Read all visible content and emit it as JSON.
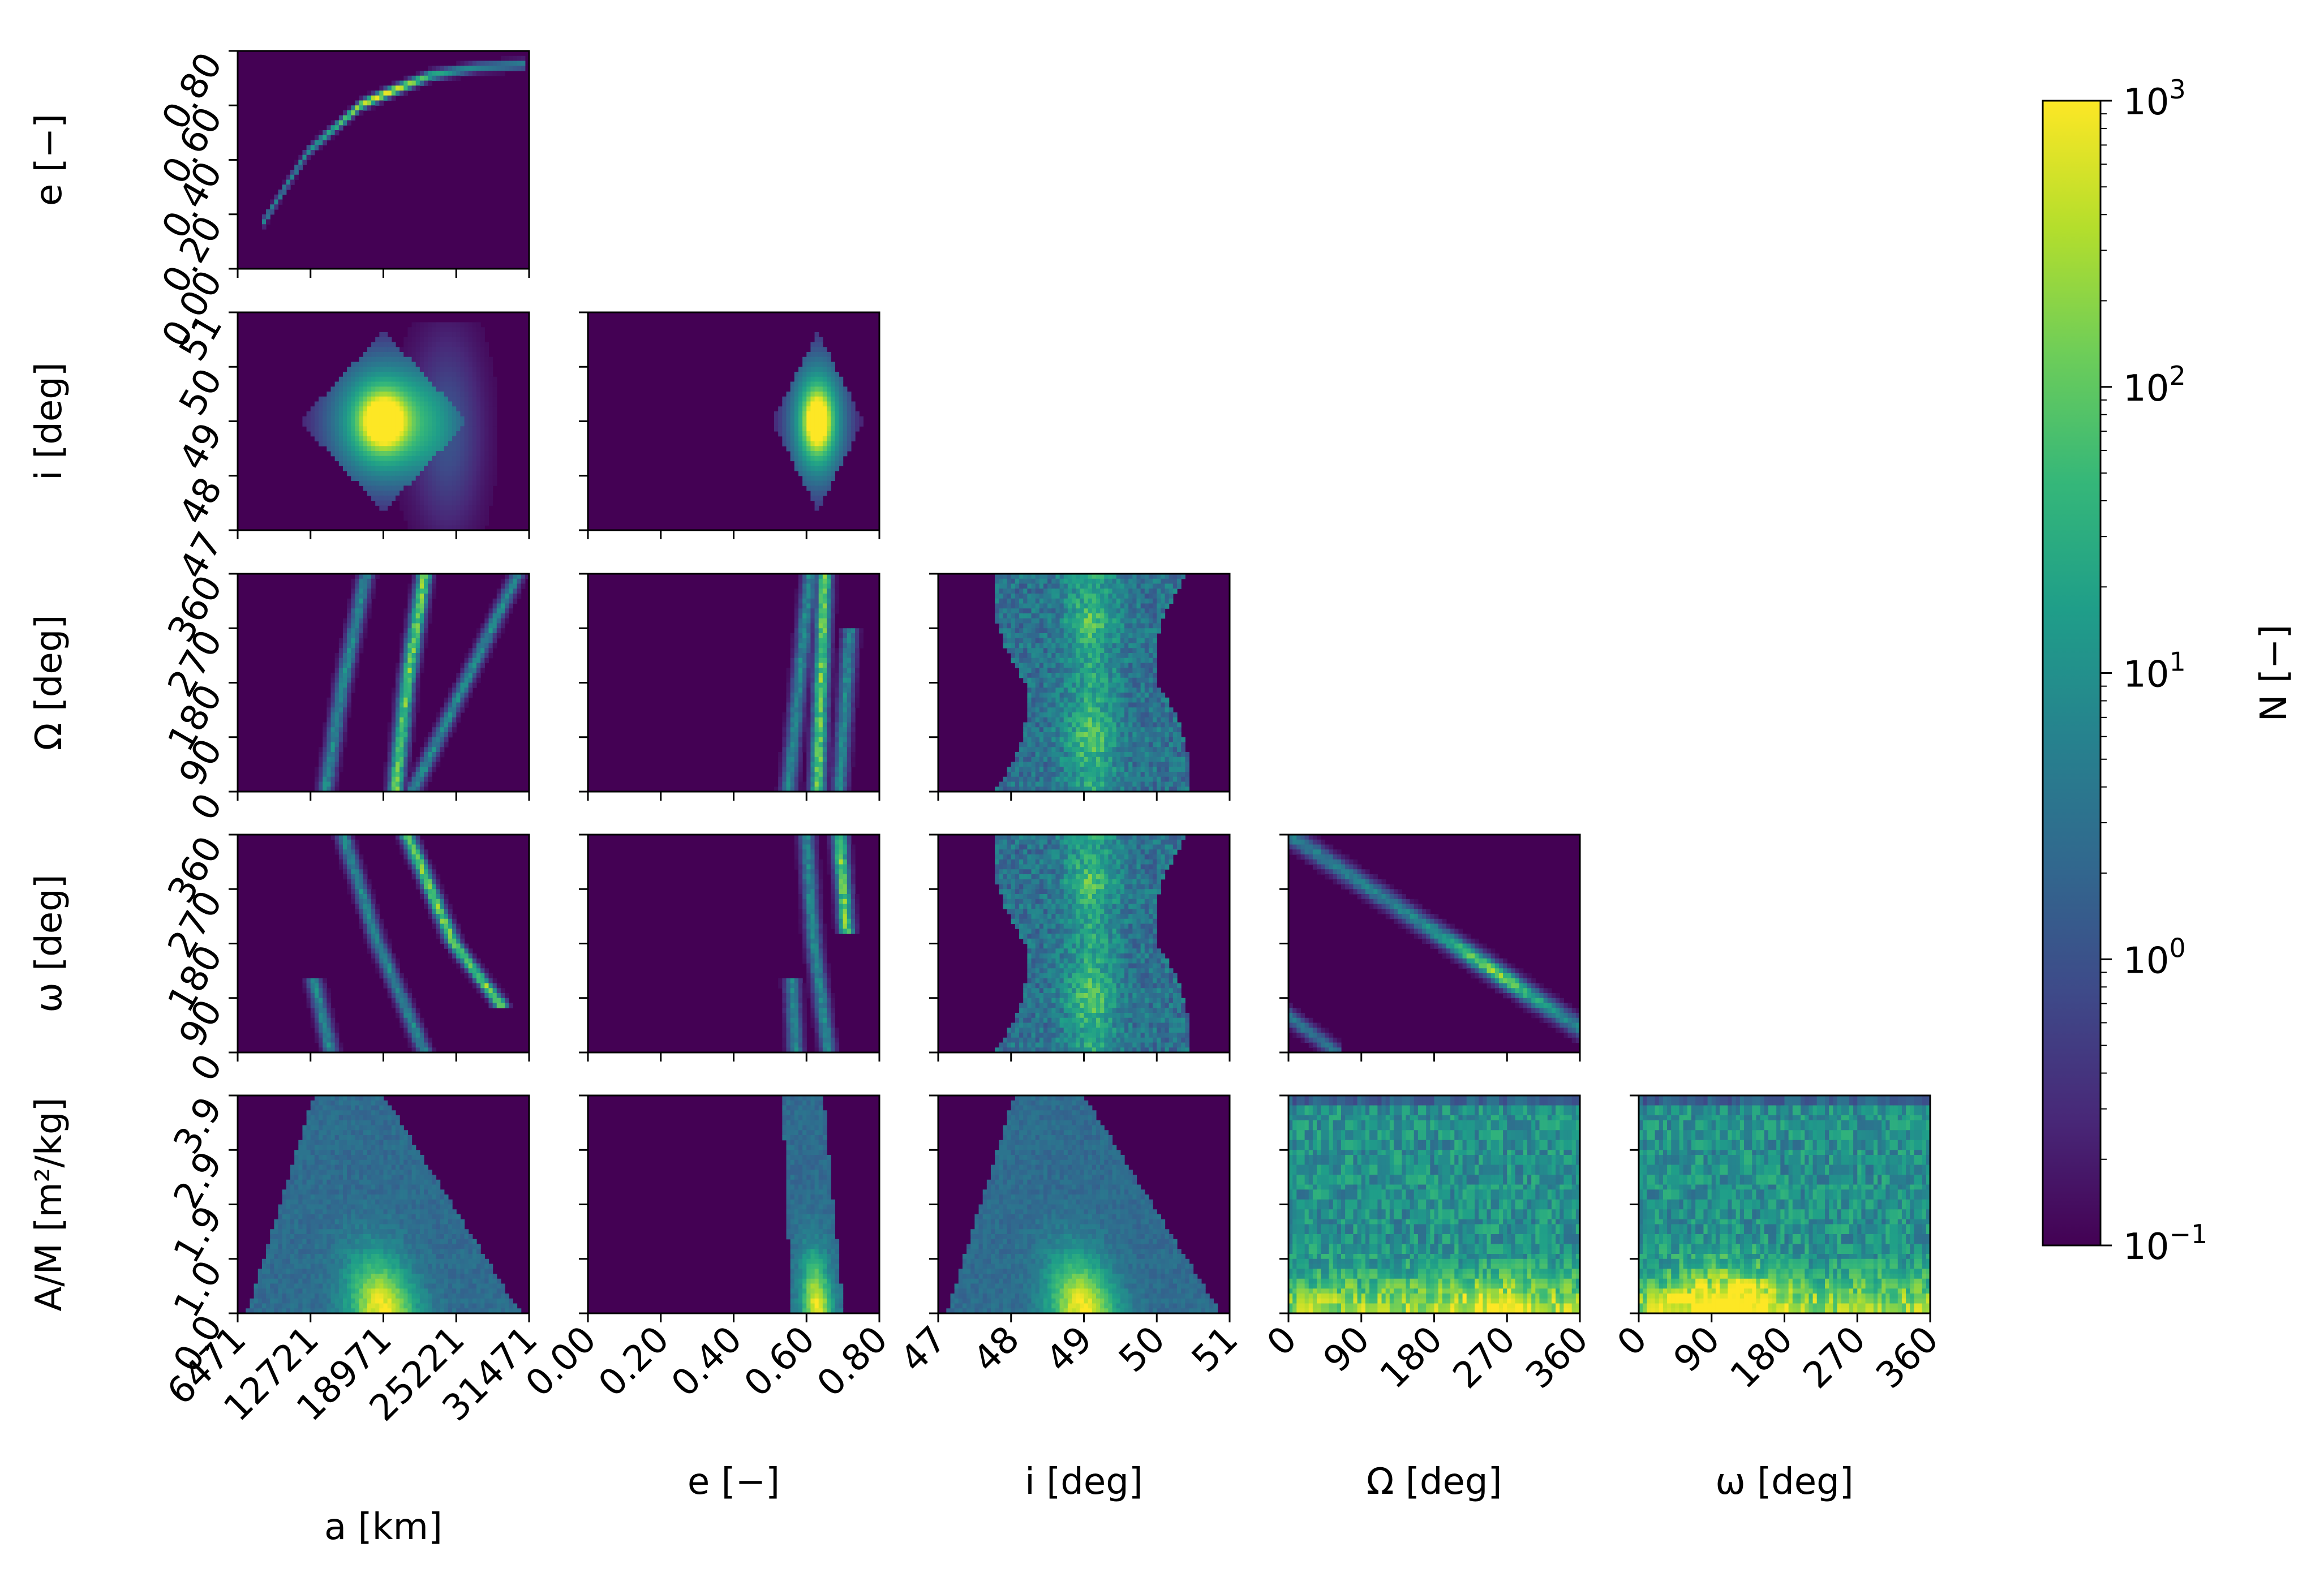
{
  "chart_data": {
    "type": "heatmap",
    "layout": "corner-plot",
    "variables": [
      {
        "key": "a",
        "label": "a [km]",
        "range": [
          6471,
          31471
        ],
        "ticks": [
          "6471",
          "12721",
          "18971",
          "25221",
          "31471"
        ]
      },
      {
        "key": "e",
        "label": "e [−]",
        "range": [
          0.0,
          0.8
        ],
        "ticks": [
          "0.00",
          "0.20",
          "0.40",
          "0.60",
          "0.80"
        ]
      },
      {
        "key": "i",
        "label": "i [deg]",
        "range": [
          47,
          51
        ],
        "ticks": [
          "47",
          "48",
          "49",
          "50",
          "51"
        ]
      },
      {
        "key": "Omega",
        "label": "Ω [deg]",
        "range": [
          0,
          360
        ],
        "ticks": [
          "0",
          "90",
          "180",
          "270",
          "360"
        ]
      },
      {
        "key": "omega",
        "label": "ω [deg]",
        "range": [
          0,
          360
        ],
        "ticks": [
          "0",
          "90",
          "180",
          "270",
          "360"
        ]
      },
      {
        "key": "AM",
        "label": "A/M [m²/kg]",
        "range": [
          0.0,
          3.9
        ],
        "ticks": [
          "0.0",
          "1.0",
          "1.9",
          "2.9",
          "3.9"
        ]
      }
    ],
    "panels": [
      {
        "row": "e",
        "col": "a",
        "pattern": "arc",
        "pts": [
          [
            8500,
            0.16
          ],
          [
            12500,
            0.43
          ],
          [
            17000,
            0.6
          ],
          [
            19000,
            0.64
          ],
          [
            23000,
            0.71
          ],
          [
            27000,
            0.74
          ],
          [
            31000,
            0.75
          ]
        ],
        "peak": [
          19000,
          0.64
        ],
        "width": 0.012
      },
      {
        "row": "i",
        "col": "a",
        "pattern": "blob",
        "center": [
          19000,
          49.0
        ],
        "spread": [
          3500,
          0.9
        ],
        "extra": [
          24500,
          48.8
        ]
      },
      {
        "row": "i",
        "col": "e",
        "pattern": "blob",
        "center": [
          0.63,
          49.0
        ],
        "spread": [
          0.06,
          0.9
        ]
      },
      {
        "row": "Omega",
        "col": "a",
        "pattern": "curves",
        "curves": [
          [
            [
              14000,
              0
            ],
            [
              15500,
              180
            ],
            [
              17500,
              360
            ]
          ],
          [
            [
              20000,
              0
            ],
            [
              21000,
              180
            ],
            [
              22500,
              360
            ]
          ],
          [
            [
              21500,
              0
            ],
            [
              26000,
              180
            ],
            [
              30500,
              360
            ]
          ]
        ]
      },
      {
        "row": "Omega",
        "col": "e",
        "pattern": "curves",
        "curves": [
          [
            [
              0.55,
              0
            ],
            [
              0.58,
              180
            ],
            [
              0.61,
              360
            ]
          ],
          [
            [
              0.63,
              0
            ],
            [
              0.64,
              180
            ],
            [
              0.65,
              360
            ]
          ],
          [
            [
              0.69,
              0
            ],
            [
              0.71,
              180
            ],
            [
              0.72,
              270
            ]
          ]
        ]
      },
      {
        "row": "Omega",
        "col": "i",
        "pattern": "band",
        "center": 49.1,
        "halfwidth": 1.2
      },
      {
        "row": "omega",
        "col": "a",
        "pattern": "curves",
        "curves": [
          [
            [
              15500,
              360
            ],
            [
              18500,
              180
            ],
            [
              22500,
              0
            ]
          ],
          [
            [
              21000,
              360
            ],
            [
              25000,
              180
            ],
            [
              29000,
              80
            ]
          ],
          [
            [
              13000,
              120
            ],
            [
              14000,
              40
            ],
            [
              14500,
              0
            ]
          ]
        ]
      },
      {
        "row": "omega",
        "col": "e",
        "pattern": "curves",
        "curves": [
          [
            [
              0.6,
              360
            ],
            [
              0.62,
              180
            ],
            [
              0.66,
              0
            ]
          ],
          [
            [
              0.69,
              360
            ],
            [
              0.71,
              200
            ]
          ],
          [
            [
              0.56,
              120
            ],
            [
              0.57,
              0
            ]
          ]
        ]
      },
      {
        "row": "omega",
        "col": "i",
        "pattern": "band",
        "center": 49.1,
        "halfwidth": 1.2
      },
      {
        "row": "omega",
        "col": "Omega",
        "pattern": "diagonal",
        "pts": [
          [
            0,
            360
          ],
          [
            360,
            40
          ]
        ],
        "wrap": [
          [
            0,
            60
          ],
          [
            60,
            0
          ]
        ]
      },
      {
        "row": "AM",
        "col": "a",
        "pattern": "wedge",
        "center": 19000
      },
      {
        "row": "AM",
        "col": "e",
        "pattern": "wedge-narrow",
        "center": 0.63
      },
      {
        "row": "AM",
        "col": "i",
        "pattern": "wedge",
        "center": 49.0
      },
      {
        "row": "AM",
        "col": "Omega",
        "pattern": "uniform-columns"
      },
      {
        "row": "AM",
        "col": "omega",
        "pattern": "uniform-columns",
        "peak": 110
      }
    ],
    "colorbar": {
      "label": "N [−]",
      "scale": "log",
      "range": [
        0.1,
        1000
      ],
      "ticks": [
        {
          "base": "10",
          "exp": "−1"
        },
        {
          "base": "10",
          "exp": "0"
        },
        {
          "base": "10",
          "exp": "1"
        },
        {
          "base": "10",
          "exp": "2"
        },
        {
          "base": "10",
          "exp": "3"
        }
      ],
      "colormap": "viridis"
    }
  }
}
